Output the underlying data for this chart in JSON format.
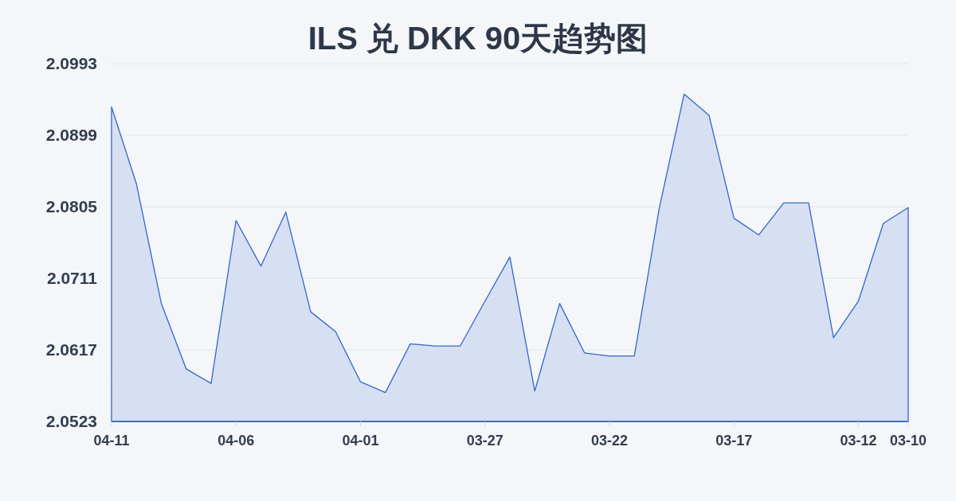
{
  "chart_data": {
    "type": "area",
    "title": "ILS 兑 DKK 90天趋势图",
    "categories": [
      "04-11",
      null,
      null,
      null,
      null,
      "04-06",
      null,
      null,
      null,
      null,
      "04-01",
      null,
      null,
      null,
      null,
      "03-27",
      null,
      null,
      null,
      null,
      "03-22",
      null,
      null,
      null,
      null,
      "03-17",
      null,
      null,
      null,
      null,
      "03-12",
      null,
      "03-10"
    ],
    "values": [
      2.0936,
      2.0835,
      2.0678,
      2.0592,
      2.0573,
      2.0787,
      2.0727,
      2.0798,
      2.0667,
      2.0641,
      2.0575,
      2.0561,
      2.0625,
      2.0622,
      2.0622,
      2.0681,
      2.0739,
      2.0563,
      2.0678,
      2.0613,
      2.0609,
      2.0609,
      2.0803,
      2.0953,
      2.0925,
      2.079,
      2.0768,
      2.081,
      2.081,
      2.0633,
      2.0681,
      2.0783,
      2.0804
    ],
    "color": "#3366cc",
    "ylim": [
      2.0523,
      2.0993
    ],
    "yticks": [
      2.0523,
      2.0617,
      2.0711,
      2.0805,
      2.0899,
      2.0993
    ],
    "grid": "y"
  }
}
